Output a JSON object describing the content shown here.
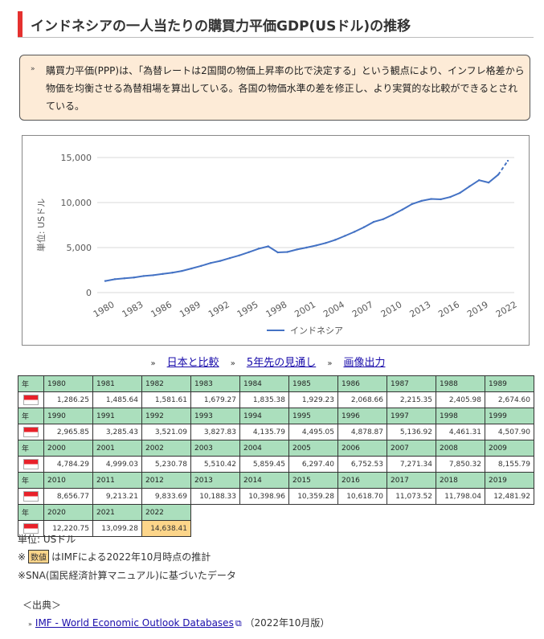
{
  "page": {
    "title": "インドネシアの一人当たりの購買力平価GDP(USドル)の推移"
  },
  "note": {
    "bullet": "»",
    "text": "購買力平価(PPP)は、「為替レートは2国間の物価上昇率の比で決定する」という観点により、インフレ格差から物価を均衡させる為替相場を算出している。各国の物価水準の差を修正し、より実質的な比較ができるとされている。"
  },
  "chart_data": {
    "type": "line",
    "title": "",
    "ylabel": "単位: USドル",
    "xlabel": "",
    "ylim": [
      0,
      15000
    ],
    "yticks": [
      0,
      5000,
      10000,
      15000
    ],
    "ytick_labels": [
      "0",
      "5,000",
      "10,000",
      "15,000"
    ],
    "xticks": [
      "1980",
      "1983",
      "1986",
      "1989",
      "1992",
      "1995",
      "1998",
      "2001",
      "2004",
      "2007",
      "2010",
      "2013",
      "2016",
      "2019",
      "2022"
    ],
    "legend": "インドネシア",
    "legend_position": "bottom",
    "series": [
      {
        "name": "インドネシア",
        "color": "#4472c4",
        "x": [
          1980,
          1981,
          1982,
          1983,
          1984,
          1985,
          1986,
          1987,
          1988,
          1989,
          1990,
          1991,
          1992,
          1993,
          1994,
          1995,
          1996,
          1997,
          1998,
          1999,
          2000,
          2001,
          2002,
          2003,
          2004,
          2005,
          2006,
          2007,
          2008,
          2009,
          2010,
          2011,
          2012,
          2013,
          2014,
          2015,
          2016,
          2017,
          2018,
          2019,
          2020,
          2021,
          2022
        ],
        "values": [
          1286.25,
          1485.64,
          1581.61,
          1679.27,
          1835.38,
          1929.23,
          2068.66,
          2215.35,
          2405.98,
          2674.6,
          2965.85,
          3285.43,
          3521.09,
          3827.83,
          4135.79,
          4495.05,
          4878.87,
          5136.92,
          4461.31,
          4507.9,
          4784.29,
          4999.03,
          5230.78,
          5510.42,
          5859.45,
          6297.4,
          6752.53,
          7271.34,
          7850.32,
          8155.79,
          8656.77,
          9213.21,
          9833.69,
          10188.33,
          10398.96,
          10359.28,
          10618.7,
          11073.52,
          11798.04,
          12481.92,
          12220.75,
          13099.28,
          14638.41
        ],
        "estimate_from": 2021
      }
    ]
  },
  "links": {
    "compare": "日本と比較",
    "forecast": "5年先の見通し",
    "image": "画像出力"
  },
  "table": {
    "year_label": "年",
    "rows": [
      {
        "years": [
          "1980",
          "1981",
          "1982",
          "1983",
          "1984",
          "1985",
          "1986",
          "1987",
          "1988",
          "1989"
        ],
        "values": [
          "1,286.25",
          "1,485.64",
          "1,581.61",
          "1,679.27",
          "1,835.38",
          "1,929.23",
          "2,068.66",
          "2,215.35",
          "2,405.98",
          "2,674.60"
        ]
      },
      {
        "years": [
          "1990",
          "1991",
          "1992",
          "1993",
          "1994",
          "1995",
          "1996",
          "1997",
          "1998",
          "1999"
        ],
        "values": [
          "2,965.85",
          "3,285.43",
          "3,521.09",
          "3,827.83",
          "4,135.79",
          "4,495.05",
          "4,878.87",
          "5,136.92",
          "4,461.31",
          "4,507.90"
        ]
      },
      {
        "years": [
          "2000",
          "2001",
          "2002",
          "2003",
          "2004",
          "2005",
          "2006",
          "2007",
          "2008",
          "2009"
        ],
        "values": [
          "4,784.29",
          "4,999.03",
          "5,230.78",
          "5,510.42",
          "5,859.45",
          "6,297.40",
          "6,752.53",
          "7,271.34",
          "7,850.32",
          "8,155.79"
        ]
      },
      {
        "years": [
          "2010",
          "2011",
          "2012",
          "2013",
          "2014",
          "2015",
          "2016",
          "2017",
          "2018",
          "2019"
        ],
        "values": [
          "8,656.77",
          "9,213.21",
          "9,833.69",
          "10,188.33",
          "10,398.96",
          "10,359.28",
          "10,618.70",
          "11,073.52",
          "11,798.04",
          "12,481.92"
        ]
      },
      {
        "years": [
          "2020",
          "2021",
          "2022"
        ],
        "values": [
          "12,220.75",
          "13,099.28",
          "14,638.41"
        ],
        "estimate_index": 2
      }
    ]
  },
  "notes": {
    "unit": "単位: USドル",
    "estimate_prefix": "※",
    "estimate_badge": "数値",
    "estimate_text": "はIMFによる2022年10月時点の推計",
    "sna": "※SNA(国民経済計算マニュアル)に基づいたデータ"
  },
  "source": {
    "heading": "＜出典＞",
    "link": "IMF - World Economic Outlook Databases",
    "suffix": "（2022年10月版）"
  },
  "colors": {
    "accent": "#e5312f",
    "header_green": "#abdfbd",
    "estimate": "#fcd58a",
    "line": "#4472c4",
    "note_bg": "#fdebd7"
  }
}
